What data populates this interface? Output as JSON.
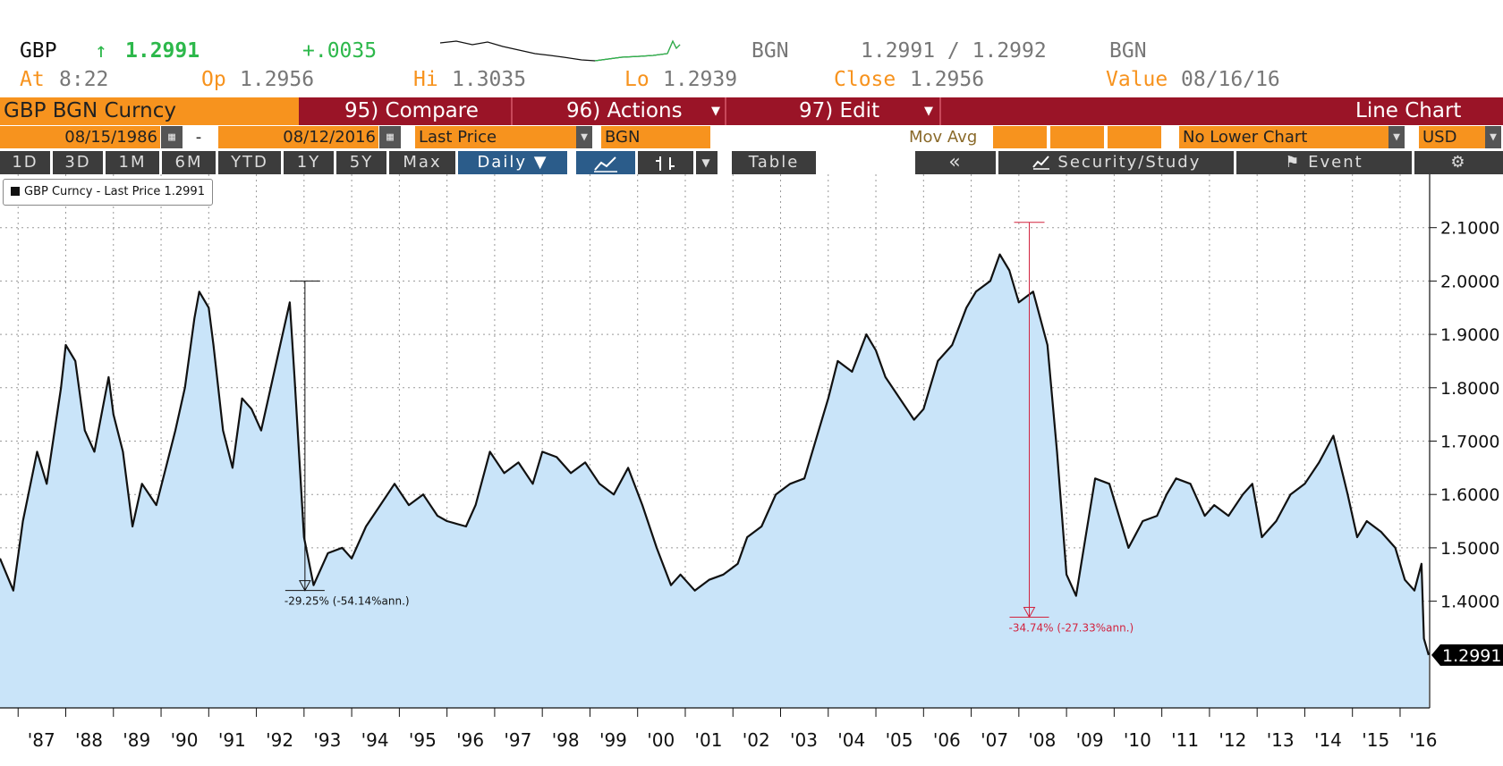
{
  "quote": {
    "ticker": "GBP",
    "arrow": "↑",
    "last": "1.2991",
    "change": "+.0035",
    "source": "BGN",
    "bid_ask": "1.2991 / 1.2992",
    "source2": "BGN",
    "at_label": "At",
    "at_value": "8:22",
    "op_label": "Op",
    "op_value": "1.2956",
    "hi_label": "Hi",
    "hi_value": "1.3035",
    "lo_label": "Lo",
    "lo_value": "1.2939",
    "close_label": "Close",
    "close_value": "1.2956",
    "value_label": "Value",
    "value_date": "08/16/16"
  },
  "menubar": {
    "security": "GBP BGN Curncy",
    "compare": "95) Compare",
    "actions": "96) Actions",
    "edit": "97) Edit",
    "chart_type": "Line Chart"
  },
  "settings": {
    "start_date": "08/15/1986",
    "dash": "-",
    "end_date": "08/12/2016",
    "field": "Last Price",
    "source": "BGN",
    "mov_avg": "Mov Avg",
    "lower_chart": "No Lower Chart",
    "currency": "USD"
  },
  "toolbar": {
    "periods": [
      "1D",
      "3D",
      "1M",
      "6M",
      "YTD",
      "1Y",
      "5Y",
      "Max"
    ],
    "frequency": "Daily ▼",
    "table": "Table",
    "back": "«",
    "security_study": "Security/Study",
    "event": "Event",
    "gear": "⚙"
  },
  "colors": {
    "line": "#111111",
    "fill": "#c9e4f9",
    "accent_orange": "#f7931e",
    "menu_red": "#9a1427",
    "up_green": "#2db84b",
    "drawdown2": "#d2233f"
  },
  "chart_data": {
    "type": "area",
    "title": "",
    "xlabel": "",
    "ylabel": "",
    "legend": "GBP Curncy - Last Price 1.2991",
    "legend_position": "top-left",
    "ylim": [
      1.2,
      2.2
    ],
    "yticks": [
      "1.4000",
      "1.5000",
      "1.6000",
      "1.7000",
      "1.8000",
      "1.9000",
      "2.0000",
      "2.1000"
    ],
    "xticks": [
      "'87",
      "'88",
      "'89",
      "'90",
      "'91",
      "'92",
      "'93",
      "'94",
      "'95",
      "'96",
      "'97",
      "'98",
      "'99",
      "'00",
      "'01",
      "'02",
      "'03",
      "'04",
      "'05",
      "'06",
      "'07",
      "'08",
      "'09",
      "'10",
      "'11",
      "'12",
      "'13",
      "'14",
      "'15",
      "'16"
    ],
    "grid": true,
    "last_value_label": "1.2991",
    "x": [
      1986.62,
      1986.9,
      1987.1,
      1987.4,
      1987.6,
      1987.9,
      1988.0,
      1988.2,
      1988.4,
      1988.6,
      1988.9,
      1989.0,
      1989.2,
      1989.4,
      1989.6,
      1989.9,
      1990.1,
      1990.3,
      1990.5,
      1990.7,
      1990.8,
      1991.0,
      1991.1,
      1991.3,
      1991.5,
      1991.7,
      1991.9,
      1992.1,
      1992.3,
      1992.5,
      1992.7,
      1992.8,
      1993.0,
      1993.2,
      1993.5,
      1993.8,
      1994.0,
      1994.3,
      1994.6,
      1994.9,
      1995.2,
      1995.5,
      1995.8,
      1996.0,
      1996.4,
      1996.6,
      1996.9,
      1997.2,
      1997.5,
      1997.8,
      1998.0,
      1998.3,
      1998.6,
      1998.9,
      1999.2,
      1999.5,
      1999.8,
      2000.1,
      2000.4,
      2000.7,
      2000.9,
      2001.2,
      2001.5,
      2001.8,
      2002.1,
      2002.3,
      2002.6,
      2002.9,
      2003.2,
      2003.5,
      2003.8,
      2004.0,
      2004.2,
      2004.5,
      2004.8,
      2005.0,
      2005.2,
      2005.5,
      2005.8,
      2006.0,
      2006.3,
      2006.6,
      2006.9,
      2007.1,
      2007.4,
      2007.6,
      2007.8,
      2008.0,
      2008.3,
      2008.6,
      2008.8,
      2009.0,
      2009.2,
      2009.4,
      2009.6,
      2009.9,
      2010.1,
      2010.3,
      2010.6,
      2010.9,
      2011.1,
      2011.3,
      2011.6,
      2011.9,
      2012.1,
      2012.4,
      2012.7,
      2012.9,
      2013.1,
      2013.4,
      2013.7,
      2014.0,
      2014.3,
      2014.6,
      2014.9,
      2015.1,
      2015.3,
      2015.6,
      2015.9,
      2016.1,
      2016.3,
      2016.45,
      2016.5,
      2016.6
    ],
    "values": [
      1.48,
      1.42,
      1.55,
      1.68,
      1.62,
      1.8,
      1.88,
      1.85,
      1.72,
      1.68,
      1.82,
      1.75,
      1.68,
      1.54,
      1.62,
      1.58,
      1.65,
      1.72,
      1.8,
      1.93,
      1.98,
      1.95,
      1.88,
      1.72,
      1.65,
      1.78,
      1.76,
      1.72,
      1.8,
      1.88,
      1.96,
      1.82,
      1.52,
      1.43,
      1.49,
      1.5,
      1.48,
      1.54,
      1.58,
      1.62,
      1.58,
      1.6,
      1.56,
      1.55,
      1.54,
      1.58,
      1.68,
      1.64,
      1.66,
      1.62,
      1.68,
      1.67,
      1.64,
      1.66,
      1.62,
      1.6,
      1.65,
      1.58,
      1.5,
      1.43,
      1.45,
      1.42,
      1.44,
      1.45,
      1.47,
      1.52,
      1.54,
      1.6,
      1.62,
      1.63,
      1.72,
      1.78,
      1.85,
      1.83,
      1.9,
      1.87,
      1.82,
      1.78,
      1.74,
      1.76,
      1.85,
      1.88,
      1.95,
      1.98,
      2.0,
      2.05,
      2.02,
      1.96,
      1.98,
      1.88,
      1.68,
      1.45,
      1.41,
      1.52,
      1.63,
      1.62,
      1.56,
      1.5,
      1.55,
      1.56,
      1.6,
      1.63,
      1.62,
      1.56,
      1.58,
      1.56,
      1.6,
      1.62,
      1.52,
      1.55,
      1.6,
      1.62,
      1.66,
      1.71,
      1.6,
      1.52,
      1.55,
      1.53,
      1.5,
      1.44,
      1.42,
      1.47,
      1.33,
      1.2991
    ],
    "annotations": [
      {
        "label": "-29.25% (-54.14%ann.)",
        "from_x": 1992.7,
        "from_y": 2.0,
        "to_x": 1993.05,
        "to_y": 1.42
      },
      {
        "label": "-34.74% (-27.33%ann.)",
        "from_x": 2007.9,
        "from_y": 2.11,
        "to_x": 2008.95,
        "to_y": 1.37
      }
    ]
  }
}
